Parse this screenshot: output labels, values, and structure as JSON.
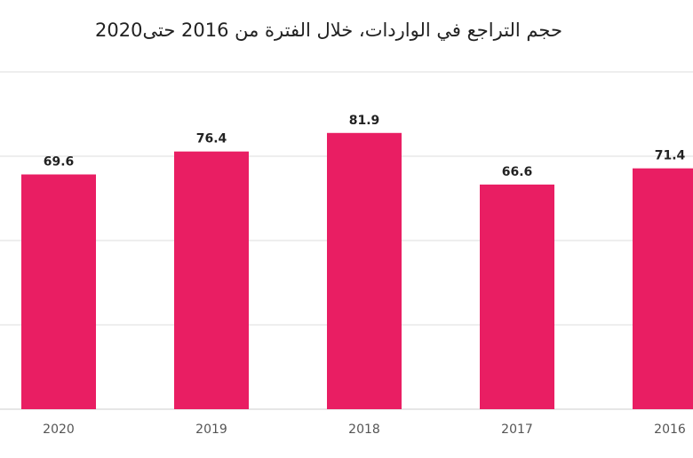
{
  "chart_data": {
    "type": "bar",
    "title": "حجم التراجع في الواردات، خلال الفترة من 2016 حتى2020",
    "categories": [
      "2020",
      "2019",
      "2018",
      "2017",
      "2016"
    ],
    "values": [
      69.6,
      76.4,
      81.9,
      66.6,
      71.4
    ],
    "ylim": [
      0,
      100
    ],
    "grid": true,
    "legend": "none",
    "xlabel": "",
    "ylabel": ""
  },
  "colors": {
    "bar": "#e91e63",
    "grid": "#dddddd",
    "axis": "#cccccc"
  }
}
